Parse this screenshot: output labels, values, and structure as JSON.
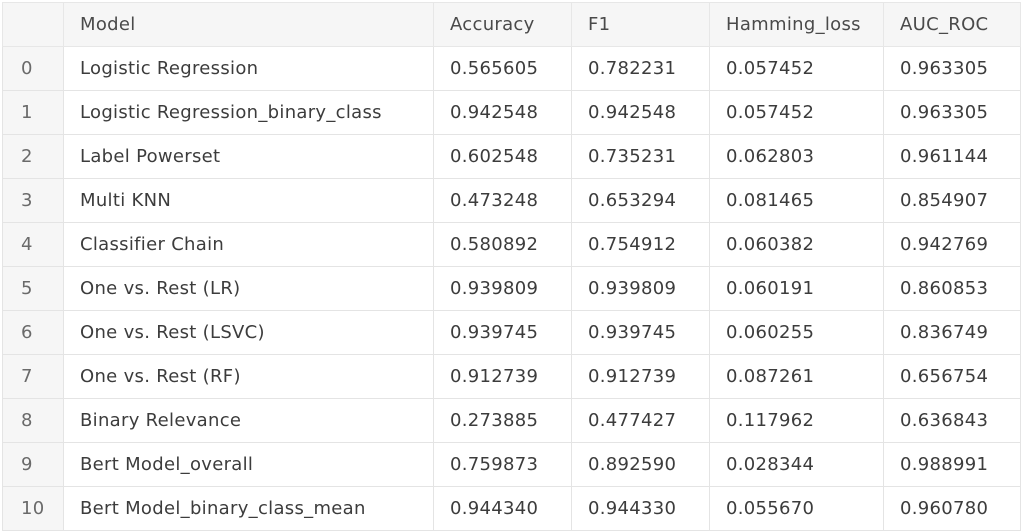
{
  "table": {
    "headers": {
      "index": "",
      "model": "Model",
      "accuracy": "Accuracy",
      "f1": "F1",
      "hamming_loss": "Hamming_loss",
      "auc_roc": "AUC_ROC"
    },
    "rows": [
      {
        "index": "0",
        "model": "Logistic Regression",
        "accuracy": "0.565605",
        "f1": "0.782231",
        "hamming_loss": "0.057452",
        "auc_roc": "0.963305"
      },
      {
        "index": "1",
        "model": "Logistic Regression_binary_class",
        "accuracy": "0.942548",
        "f1": "0.942548",
        "hamming_loss": "0.057452",
        "auc_roc": "0.963305"
      },
      {
        "index": "2",
        "model": "Label Powerset",
        "accuracy": "0.602548",
        "f1": "0.735231",
        "hamming_loss": "0.062803",
        "auc_roc": "0.961144"
      },
      {
        "index": "3",
        "model": "Multi KNN",
        "accuracy": "0.473248",
        "f1": "0.653294",
        "hamming_loss": "0.081465",
        "auc_roc": "0.854907"
      },
      {
        "index": "4",
        "model": "Classifier Chain",
        "accuracy": "0.580892",
        "f1": "0.754912",
        "hamming_loss": "0.060382",
        "auc_roc": "0.942769"
      },
      {
        "index": "5",
        "model": "One vs. Rest (LR)",
        "accuracy": "0.939809",
        "f1": "0.939809",
        "hamming_loss": "0.060191",
        "auc_roc": "0.860853"
      },
      {
        "index": "6",
        "model": "One vs. Rest (LSVC)",
        "accuracy": "0.939745",
        "f1": "0.939745",
        "hamming_loss": "0.060255",
        "auc_roc": "0.836749"
      },
      {
        "index": "7",
        "model": "One vs. Rest (RF)",
        "accuracy": "0.912739",
        "f1": "0.912739",
        "hamming_loss": "0.087261",
        "auc_roc": "0.656754"
      },
      {
        "index": "8",
        "model": "Binary Relevance",
        "accuracy": "0.273885",
        "f1": "0.477427",
        "hamming_loss": "0.117962",
        "auc_roc": "0.636843"
      },
      {
        "index": "9",
        "model": "Bert Model_overall",
        "accuracy": "0.759873",
        "f1": "0.892590",
        "hamming_loss": "0.028344",
        "auc_roc": "0.988991"
      },
      {
        "index": "10",
        "model": "Bert Model_binary_class_mean",
        "accuracy": "0.944340",
        "f1": "0.944330",
        "hamming_loss": "0.055670",
        "auc_roc": "0.960780"
      }
    ]
  },
  "colors": {
    "header_background": "#f6f6f6",
    "index_background": "#f6f6f6",
    "cell_background": "#ffffff",
    "border": "#e4e4e4",
    "text": "#3c3c3c"
  }
}
